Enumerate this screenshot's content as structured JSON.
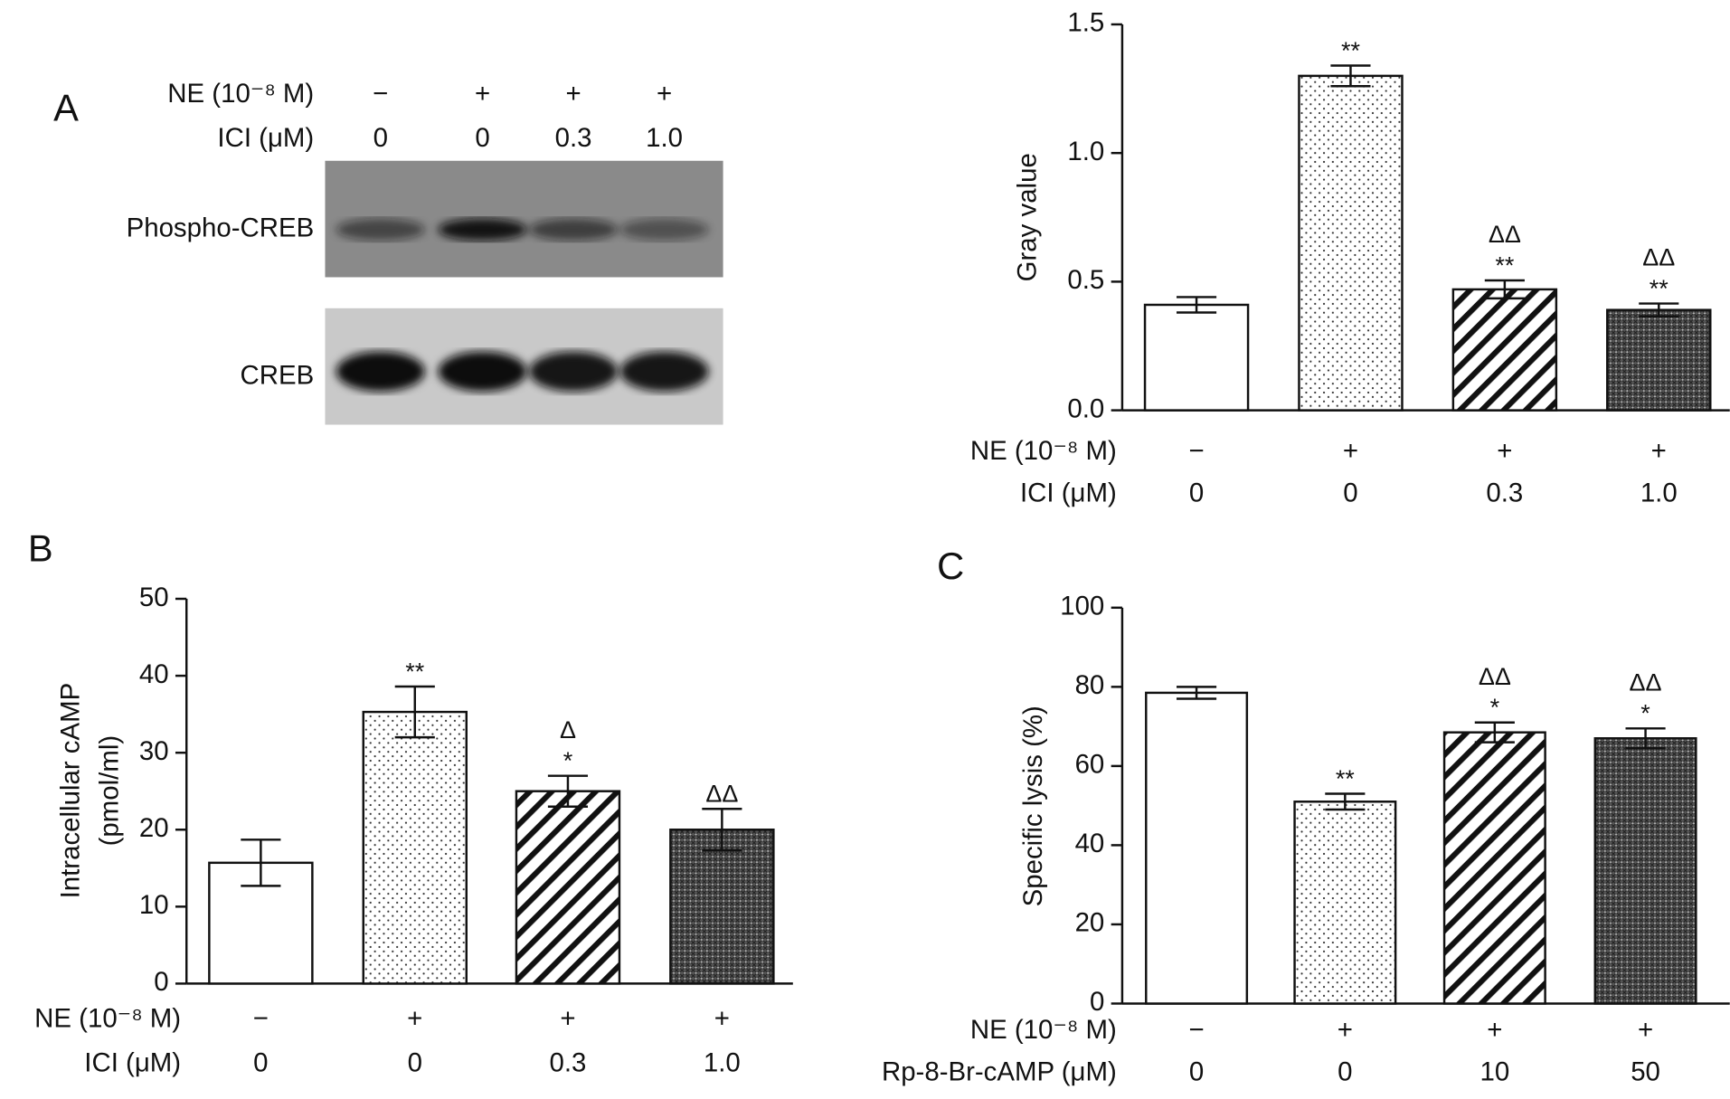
{
  "panels": [
    "A",
    "B",
    "C"
  ],
  "blot": {
    "conditions": [
      {
        "label": "NE (10⁻⁸ M)",
        "values": [
          "−",
          "+",
          "+",
          "+"
        ]
      },
      {
        "label": "ICI (μM)",
        "values": [
          "0",
          "0",
          "0.3",
          "1.0"
        ]
      }
    ],
    "lanes": [
      "Phospho-CREB",
      "CREB"
    ]
  },
  "chart_data": [
    {
      "type": "bar",
      "ylabel": [
        "Gray value"
      ],
      "values": [
        0.41,
        1.3,
        0.47,
        0.39
      ],
      "errors": [
        0.03,
        0.04,
        0.035,
        0.025
      ],
      "annotations": [
        [],
        [
          "**"
        ],
        [
          "ΔΔ",
          "**"
        ],
        [
          "ΔΔ",
          "**"
        ]
      ],
      "bar_fills": [
        "white",
        "dots",
        "hatch",
        "crosshatch"
      ],
      "ylim": [
        0,
        1.5
      ],
      "yticks": [
        {
          "value": 0,
          "label": "0.0"
        },
        {
          "value": 0.5,
          "label": "0.5"
        },
        {
          "value": 1,
          "label": "1.0"
        },
        {
          "value": 1.5,
          "label": "1.5"
        }
      ],
      "conditions": [
        {
          "label": "NE (10⁻⁸ M)",
          "values": [
            "−",
            "+",
            "+",
            "+"
          ]
        },
        {
          "label": "ICI (μM)",
          "values": [
            "0",
            "0",
            "0.3",
            "1.0"
          ]
        }
      ]
    },
    {
      "type": "bar",
      "ylabel": [
        "Intracellular cAMP",
        "(pmol/ml)"
      ],
      "values": [
        15.7,
        35.3,
        25,
        20
      ],
      "errors": [
        3,
        3.3,
        2,
        2.7
      ],
      "annotations": [
        [],
        [
          "**"
        ],
        [
          "Δ",
          "*"
        ],
        [
          "ΔΔ"
        ]
      ],
      "bar_fills": [
        "white",
        "dots",
        "hatch",
        "crosshatch"
      ],
      "ylim": [
        0,
        50
      ],
      "yticks": [
        0,
        10,
        20,
        30,
        40,
        50
      ],
      "conditions": [
        {
          "label": "NE (10⁻⁸ M)",
          "values": [
            "−",
            "+",
            "+",
            "+"
          ]
        },
        {
          "label": "ICI (μM)",
          "values": [
            "0",
            "0",
            "0.3",
            "1.0"
          ]
        }
      ]
    },
    {
      "type": "bar",
      "ylabel": [
        "Specific lysis (%)"
      ],
      "values": [
        78.5,
        51,
        68.5,
        67
      ],
      "errors": [
        1.5,
        2,
        2.5,
        2.5
      ],
      "annotations": [
        [],
        [
          "**"
        ],
        [
          "ΔΔ",
          "*"
        ],
        [
          "ΔΔ",
          "*"
        ]
      ],
      "bar_fills": [
        "white",
        "dots",
        "hatch",
        "crosshatch"
      ],
      "ylim": [
        0,
        100
      ],
      "yticks": [
        0,
        20,
        40,
        60,
        80,
        100
      ],
      "conditions": [
        {
          "label": "NE (10⁻⁸ M)",
          "values": [
            "−",
            "+",
            "+",
            "+"
          ]
        },
        {
          "label": "Rp-8-Br-cAMP (μM)",
          "values": [
            "0",
            "0",
            "10",
            "50"
          ]
        }
      ]
    }
  ]
}
